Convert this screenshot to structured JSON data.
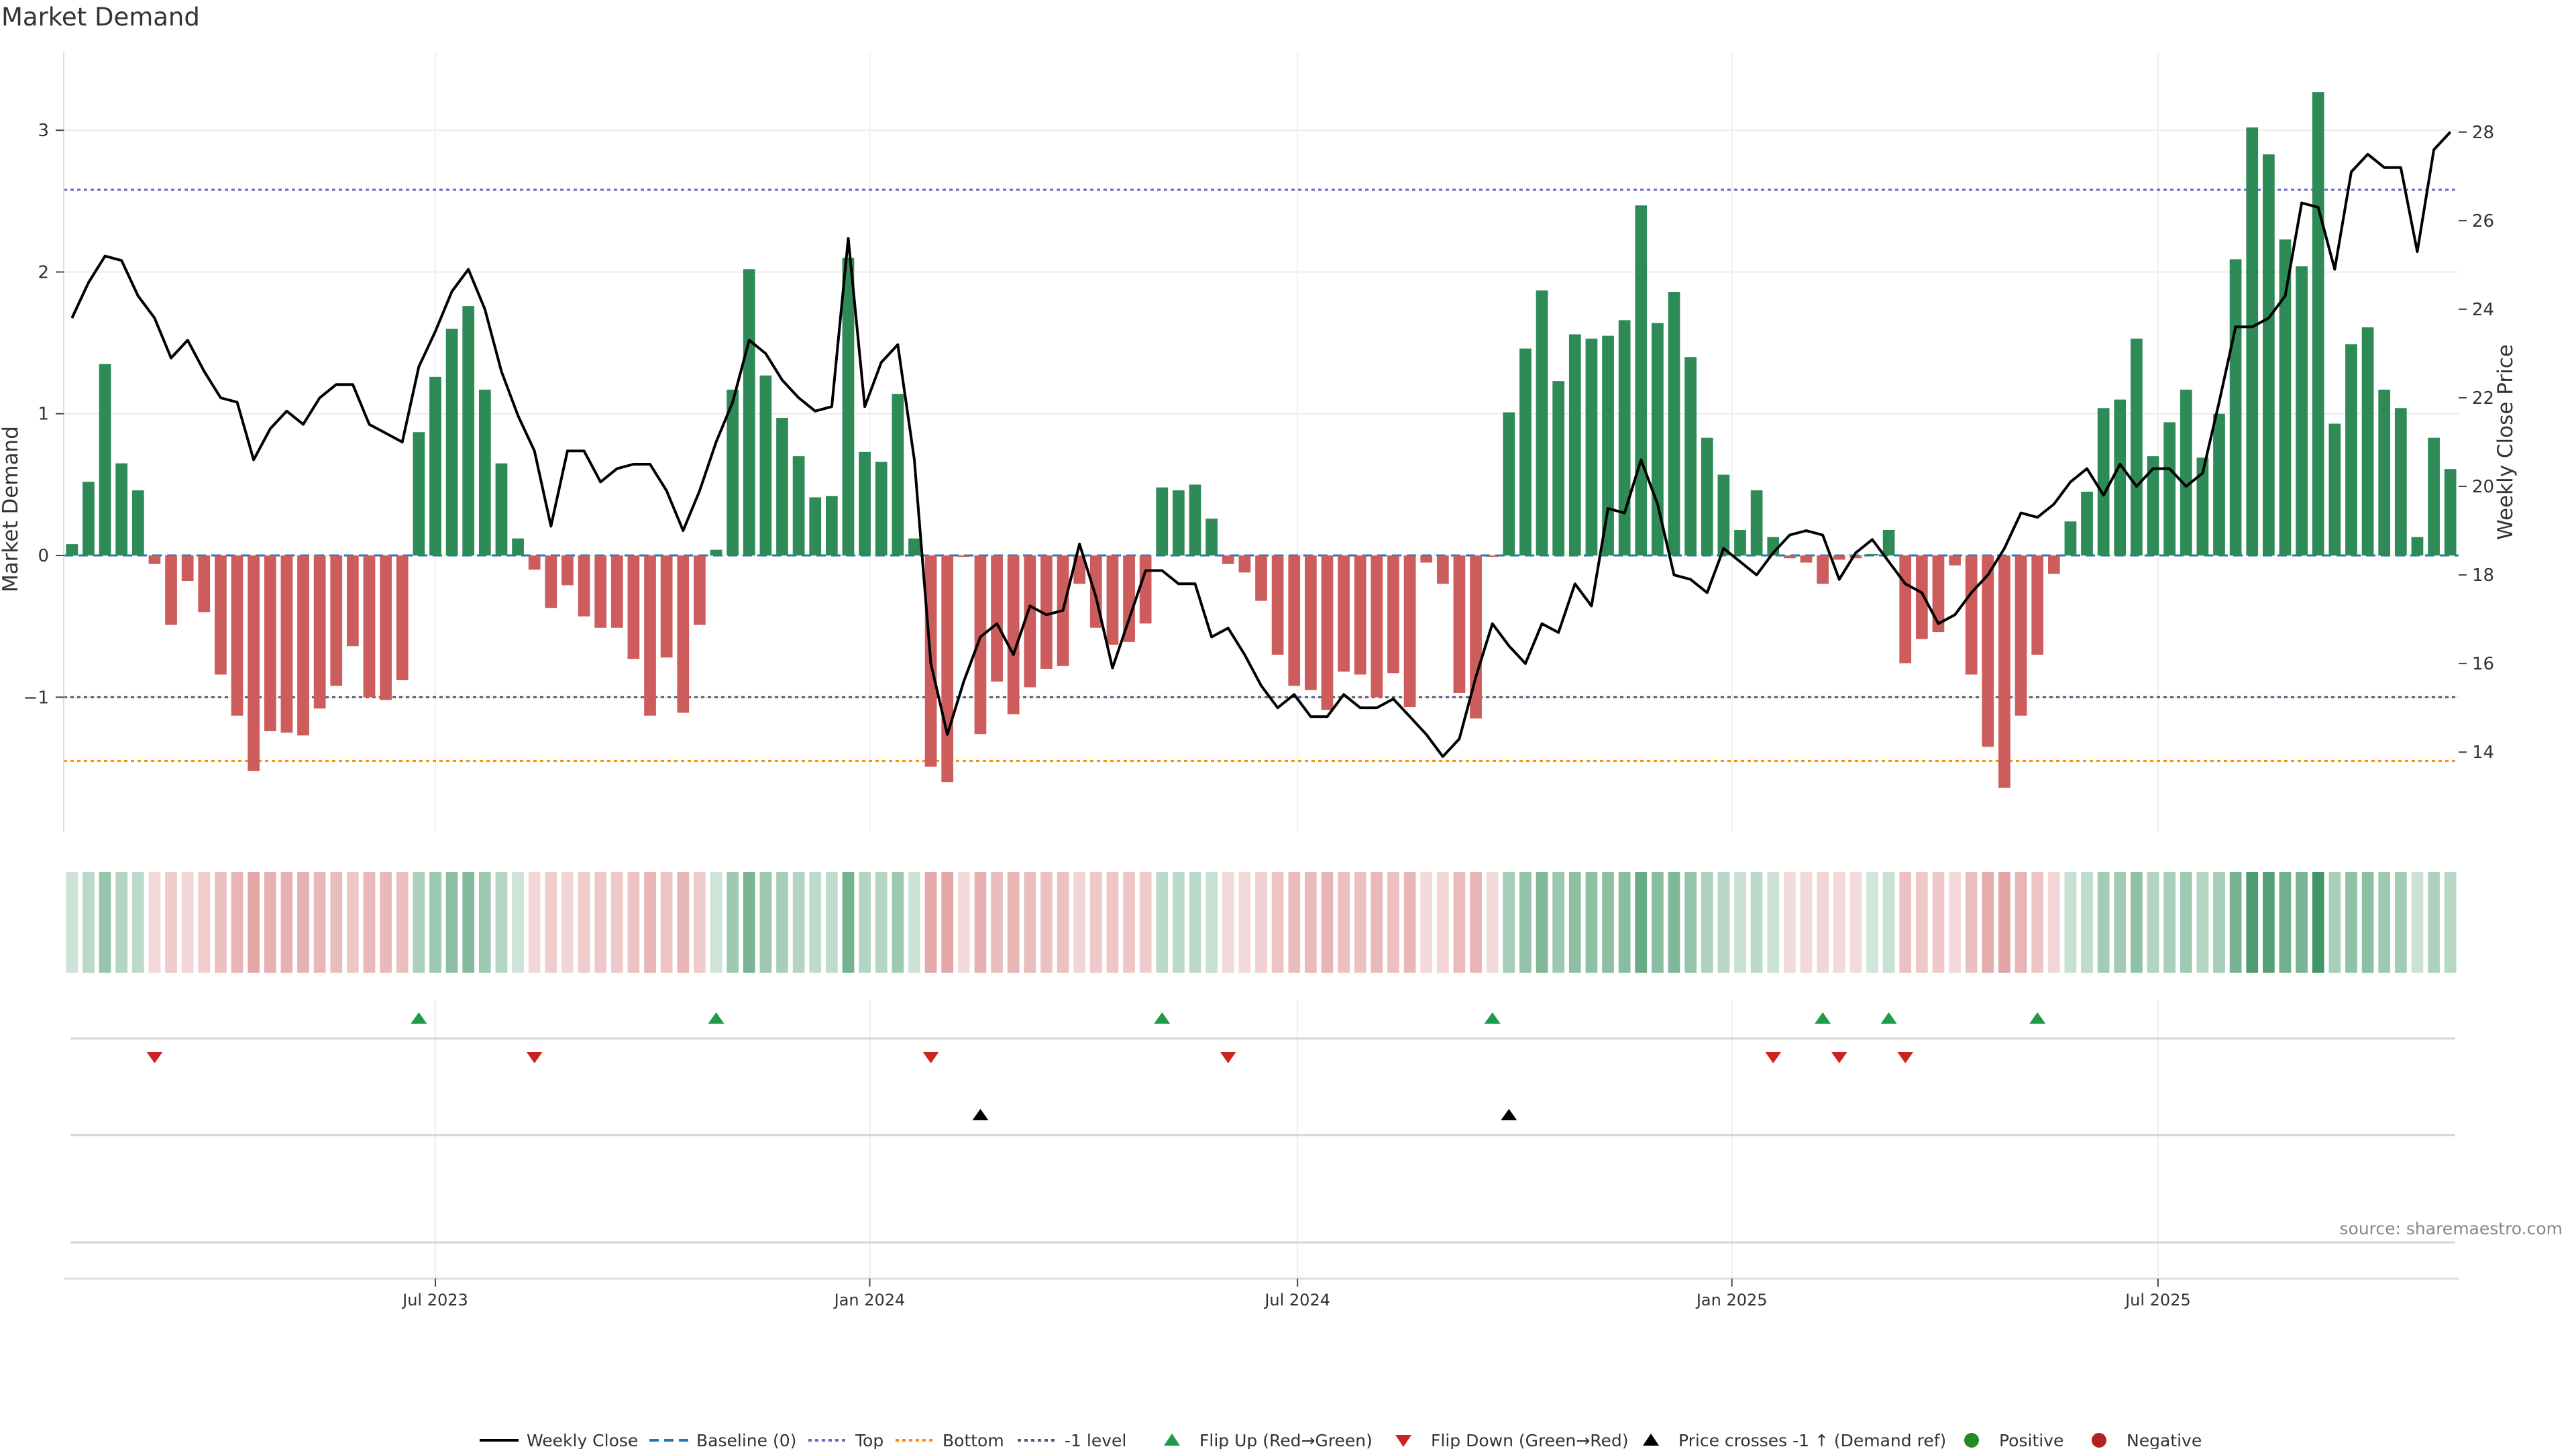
{
  "chart_data": {
    "type": "bar",
    "title": "Market Demand",
    "source": "source: sharemaestro.com",
    "ylabel_left": "Market Demand",
    "ylabel_right": "Weekly Close Price",
    "y_left_ticks": [
      3,
      2,
      1,
      0,
      -1
    ],
    "y_left_tick_labels": [
      "3",
      "2",
      "1",
      "0",
      "−1"
    ],
    "ylim_left": [
      -1.95,
      3.55
    ],
    "y_right_ticks": [
      28,
      26,
      24,
      22,
      20,
      18,
      16,
      14
    ],
    "ylim_right": [
      12.2,
      29.8
    ],
    "x_ticks": [
      "Jul 2023",
      "Jan 2024",
      "Jul 2024",
      "Jan 2025",
      "Jul 2025"
    ],
    "x_tick_week_index": [
      22,
      48.3,
      74.2,
      100.5,
      126.3
    ],
    "levels": {
      "top": 2.58,
      "bottom": -1.45,
      "minus_one": -1.0,
      "baseline": 0
    },
    "demand": [
      0.08,
      0.52,
      1.35,
      0.65,
      0.46,
      -0.06,
      -0.49,
      -0.18,
      -0.4,
      -0.84,
      -1.13,
      -1.52,
      -1.24,
      -1.25,
      -1.27,
      -1.08,
      -0.92,
      -0.64,
      -1.0,
      -1.02,
      -0.88,
      0.87,
      1.26,
      1.6,
      1.76,
      1.17,
      0.65,
      0.12,
      -0.1,
      -0.37,
      -0.21,
      -0.43,
      -0.51,
      -0.51,
      -0.73,
      -1.13,
      -0.72,
      -1.11,
      -0.49,
      0.04,
      1.17,
      2.02,
      1.27,
      0.97,
      0.7,
      0.41,
      0.42,
      2.1,
      0.73,
      0.66,
      1.14,
      0.12,
      -1.49,
      -1.6,
      -0.01,
      -1.26,
      -0.89,
      -1.12,
      -0.93,
      -0.8,
      -0.78,
      -0.2,
      -0.51,
      -0.63,
      -0.61,
      -0.48,
      0.48,
      0.46,
      0.5,
      0.26,
      -0.06,
      -0.12,
      -0.32,
      -0.7,
      -0.92,
      -0.95,
      -1.09,
      -0.82,
      -0.84,
      -1.0,
      -0.83,
      -1.07,
      -0.05,
      -0.2,
      -0.97,
      -1.15,
      -0.01,
      1.01,
      1.46,
      1.87,
      1.23,
      1.56,
      1.53,
      1.55,
      1.66,
      2.47,
      1.64,
      1.86,
      1.4,
      0.83,
      0.57,
      0.18,
      0.46,
      0.13,
      -0.02,
      -0.05,
      -0.2,
      -0.03,
      -0.02,
      0.01,
      0.18,
      -0.76,
      -0.59,
      -0.54,
      -0.07,
      -0.84,
      -1.35,
      -1.64,
      -1.13,
      -0.7,
      -0.13,
      0.24,
      0.45,
      1.04,
      1.1,
      1.53,
      0.7,
      0.94,
      1.17,
      0.69,
      1.0,
      2.09,
      3.02,
      2.83,
      2.23,
      2.04,
      3.27,
      0.93,
      1.49,
      1.61,
      1.17,
      1.04,
      0.13,
      0.83,
      0.61
    ],
    "weekly_close": [
      23.8,
      24.6,
      25.2,
      25.1,
      24.3,
      23.8,
      22.9,
      23.3,
      22.6,
      22.0,
      21.9,
      20.6,
      21.3,
      21.7,
      21.4,
      22.0,
      22.3,
      22.3,
      21.4,
      21.2,
      21.0,
      22.7,
      23.5,
      24.4,
      24.9,
      24.0,
      22.6,
      21.6,
      20.8,
      19.1,
      20.8,
      20.8,
      20.1,
      20.4,
      20.5,
      20.5,
      19.9,
      19.0,
      19.9,
      21.0,
      21.9,
      23.3,
      23.0,
      22.4,
      22.0,
      21.7,
      21.8,
      25.6,
      21.8,
      22.8,
      23.2,
      20.6,
      16.0,
      14.4,
      15.6,
      16.6,
      16.9,
      16.2,
      17.3,
      17.1,
      17.2,
      18.7,
      17.5,
      15.9,
      17.0,
      18.1,
      18.1,
      17.8,
      17.8,
      16.6,
      16.8,
      16.2,
      15.5,
      15.0,
      15.3,
      14.8,
      14.8,
      15.3,
      15.0,
      15.0,
      15.2,
      14.8,
      14.4,
      13.9,
      14.3,
      15.7,
      16.9,
      16.4,
      16.0,
      16.9,
      16.7,
      17.8,
      17.3,
      19.5,
      19.4,
      20.6,
      19.6,
      18.0,
      17.9,
      17.6,
      18.6,
      18.3,
      18.0,
      18.5,
      18.9,
      19.0,
      18.9,
      17.9,
      18.5,
      18.8,
      18.3,
      17.8,
      17.6,
      16.9,
      17.1,
      17.6,
      18.0,
      18.6,
      19.4,
      19.3,
      19.6,
      20.1,
      20.4,
      19.8,
      20.5,
      20.0,
      20.4,
      20.4,
      20.0,
      20.3,
      21.9,
      23.6,
      23.6,
      23.8,
      24.3,
      26.4,
      26.3,
      24.9,
      27.1,
      27.5,
      27.2,
      27.2,
      25.3,
      27.6,
      28.0
    ],
    "flip_up_week_index": [
      21,
      39,
      66,
      86,
      106,
      110,
      119
    ],
    "flip_down_week_index": [
      5,
      28,
      52,
      70,
      103,
      107,
      111
    ],
    "price_cross_week_index": [
      55,
      87
    ],
    "legend": [
      "Weekly Close",
      "Baseline (0)",
      "Top",
      "Bottom",
      "-1 level",
      "Flip Up (Red→Green)",
      "Flip Down (Green→Red)",
      "Price crosses -1 ↑ (Demand ref)",
      "Positive",
      "Negative"
    ],
    "colors": {
      "positive_bar": "#2e8b57",
      "negative_bar": "#cd5c5c",
      "close_line": "#000000",
      "baseline": "#1f77b4",
      "top": "#6666cc",
      "bottom": "#ff8c00",
      "minus_one": "#555577",
      "flip_up": "#1f9a48",
      "flip_down": "#cc2222",
      "cross": "#000000",
      "legend_positive": "#228b22",
      "legend_negative": "#b22222"
    }
  }
}
